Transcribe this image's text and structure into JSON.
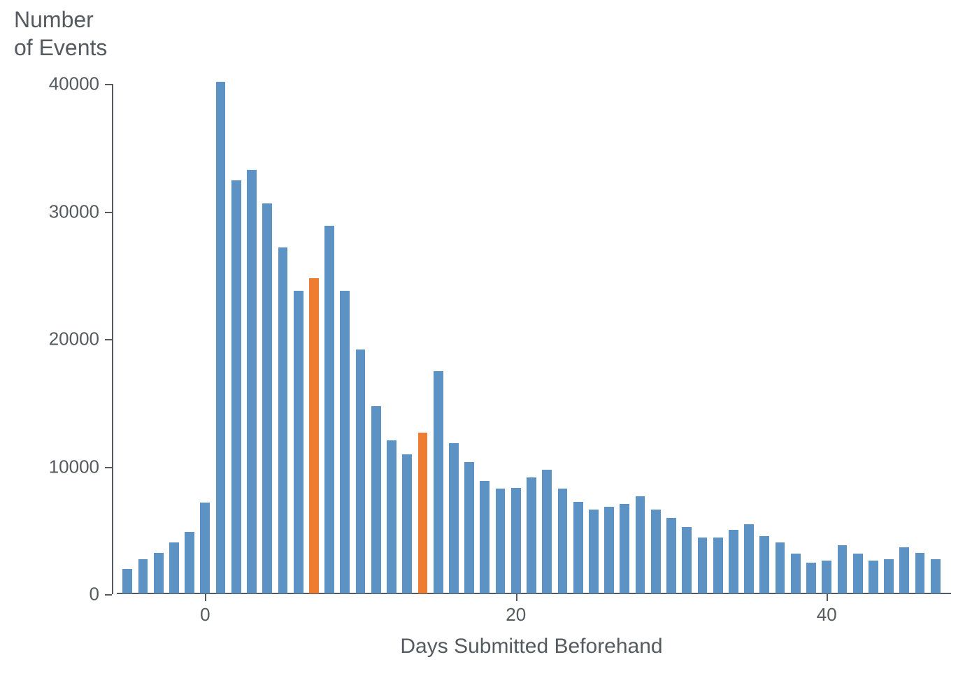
{
  "chart": {
    "type": "bar",
    "y_title": "Number\nof Events",
    "x_title": "Days Submitted Beforehand",
    "title_fontsize": 32,
    "xlabel_fontsize": 30,
    "tick_fontsize": 26,
    "text_color": "#555a5e",
    "background_color": "#ffffff",
    "bar_color": "#5c93c4",
    "highlight_color": "#ee7c31",
    "axis_color": "#555a5e",
    "ylim": [
      0,
      40000
    ],
    "yticks": [
      0,
      10000,
      20000,
      30000,
      40000
    ],
    "xlim": [
      -6,
      48
    ],
    "xticks": [
      0,
      20,
      40
    ],
    "bar_width": 0.62,
    "grid": false,
    "x_values": [
      -5,
      -4,
      -3,
      -2,
      -1,
      0,
      1,
      2,
      3,
      4,
      5,
      6,
      7,
      8,
      9,
      10,
      11,
      12,
      13,
      14,
      15,
      16,
      17,
      18,
      19,
      20,
      21,
      22,
      23,
      24,
      25,
      26,
      27,
      28,
      29,
      30,
      31,
      32,
      33,
      34,
      35,
      36,
      37,
      38,
      39,
      40,
      41,
      42,
      43,
      44,
      45,
      46,
      47
    ],
    "y_values": [
      1900,
      2700,
      3200,
      4000,
      4800,
      7100,
      40100,
      32400,
      33200,
      30600,
      27100,
      23700,
      24700,
      28800,
      23700,
      19100,
      14700,
      12000,
      10900,
      12600,
      17400,
      11800,
      10300,
      8800,
      8200,
      8300,
      9100,
      9700,
      8200,
      7200,
      6600,
      6800,
      7000,
      7600,
      6600,
      5900,
      5200,
      4400,
      4400,
      5000,
      5400,
      4500,
      4000,
      3100,
      2400,
      2600,
      3800,
      3100,
      2600,
      2700,
      3600,
      3200,
      2700
    ],
    "highlight_x": [
      7,
      14
    ]
  }
}
